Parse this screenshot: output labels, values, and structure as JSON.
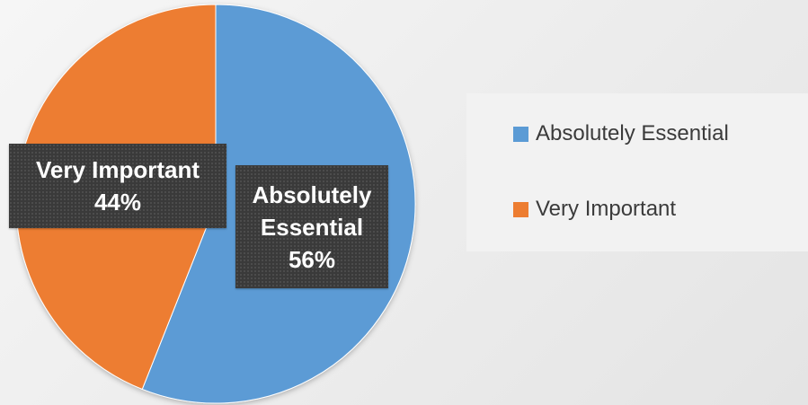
{
  "chart_data": {
    "type": "pie",
    "title": "",
    "categories": [
      "Absolutely Essential",
      "Very Important"
    ],
    "values": [
      56,
      44
    ],
    "unit": "%",
    "colors": [
      "#5b9bd5",
      "#ed7d31"
    ],
    "start_angle_deg": 0,
    "direction": "clockwise",
    "data_labels": [
      {
        "category": "Absolutely",
        "category_line2": "Essential",
        "percent": "56%"
      },
      {
        "category": "Very Important",
        "percent": "44%"
      }
    ],
    "legend": {
      "position": "right",
      "entries": [
        "Absolutely Essential",
        "Very Important"
      ]
    }
  }
}
